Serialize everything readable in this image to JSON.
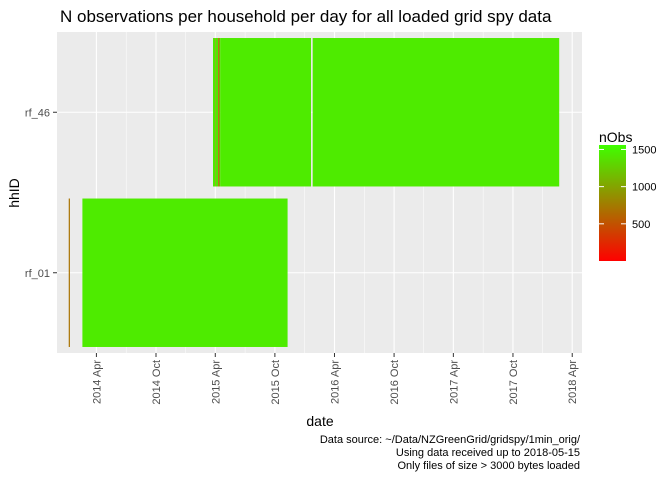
{
  "chart_data": {
    "type": "heatmap",
    "title": "N observations per household per day for all loaded grid spy data",
    "xlabel": "date",
    "ylabel": "hhID",
    "categories": [
      "rf_01",
      "rf_46"
    ],
    "x_ticks": [
      "2014 Apr",
      "2014 Oct",
      "2015 Apr",
      "2015 Oct",
      "2016 Apr",
      "2016 Oct",
      "2017 Apr",
      "2017 Oct",
      "2018 Apr"
    ],
    "xlim": [
      "2013-12-01",
      "2018-05-01"
    ],
    "grid": true,
    "legend": {
      "title": "nObs",
      "position": "right",
      "breaks": [
        500,
        1000,
        1500
      ],
      "range": [
        0,
        1560
      ],
      "low_color": "#FF0000",
      "high_color": "#3FFF00"
    },
    "series": [
      {
        "name": "rf_01",
        "segments": [
          {
            "start": "2014-01-06",
            "end": "2014-01-07",
            "value": 700
          },
          {
            "start": "2014-02-17",
            "end": "2015-11-09",
            "value": 1440
          }
        ]
      },
      {
        "name": "rf_46",
        "segments": [
          {
            "start": "2015-03-25",
            "end": "2015-04-01",
            "value": 1440
          },
          {
            "start": "2015-04-01",
            "end": "2015-04-03",
            "value": 900
          },
          {
            "start": "2015-04-03",
            "end": "2015-04-10",
            "value": 1440
          },
          {
            "start": "2015-04-10",
            "end": "2015-04-12",
            "value": 400
          },
          {
            "start": "2015-04-12",
            "end": "2015-04-16",
            "value": 1100
          },
          {
            "start": "2015-04-16",
            "end": "2016-01-20",
            "value": 1440
          },
          {
            "start": "2016-01-25",
            "end": "2018-02-20",
            "value": 1440
          }
        ]
      }
    ]
  },
  "caption": [
    "Data source: ~/Data/NZGreenGrid/gridspy/1min_orig/",
    "Using data received up to 2018-05-15",
    "Only files of size > 3000 bytes loaded"
  ]
}
